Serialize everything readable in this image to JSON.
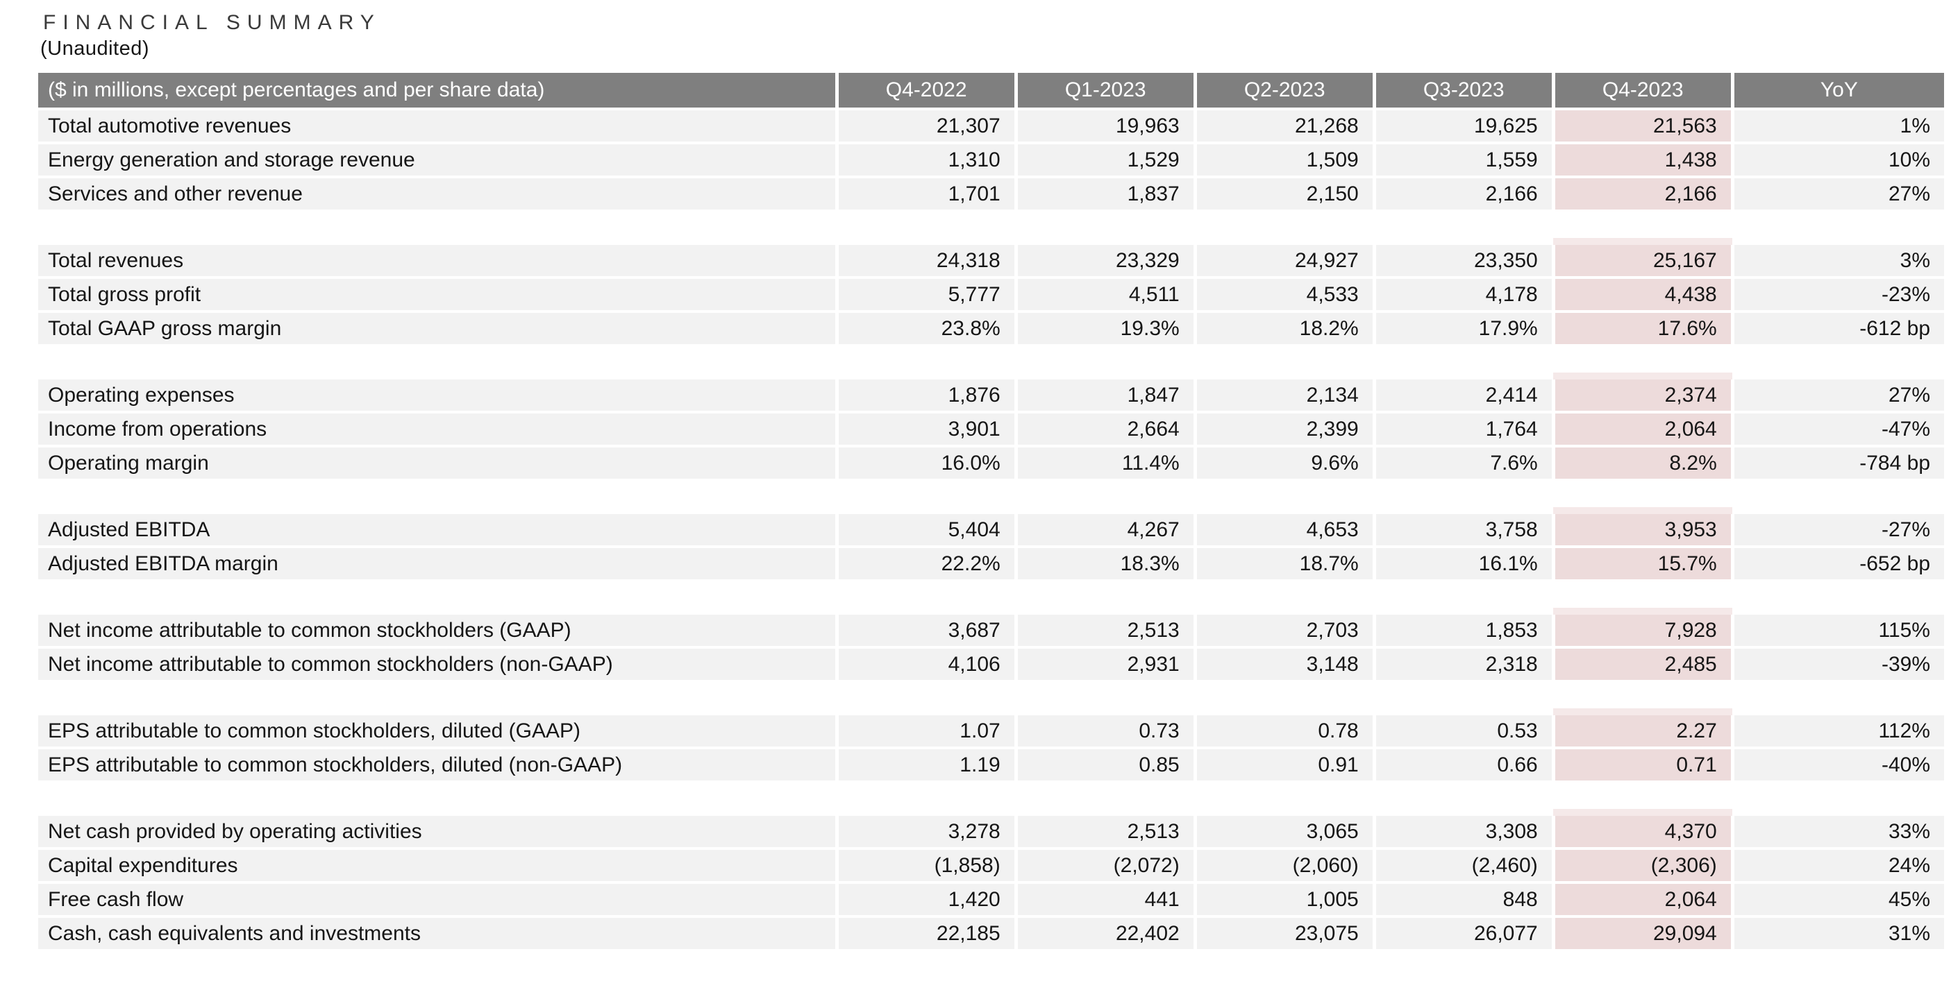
{
  "title": "FINANCIAL SUMMARY",
  "subtitle": "(Unaudited)",
  "colors": {
    "header_bg": "#7f7f7f",
    "header_text": "#ffffff",
    "row_bg": "#f2f2f2",
    "highlight_bg": "#eddbdb",
    "highlight_fade": "#f5e9e9",
    "text": "#161616",
    "title_text": "#3a3a3a"
  },
  "table": {
    "header": {
      "label": "($ in millions, except percentages and per share data)",
      "columns": [
        "Q4-2022",
        "Q1-2023",
        "Q2-2023",
        "Q3-2023",
        "Q4-2023",
        "YoY"
      ],
      "highlight_column": "Q4-2023"
    },
    "groups": [
      {
        "rows": [
          {
            "label": "Total automotive revenues",
            "values": [
              "21,307",
              "19,963",
              "21,268",
              "19,625",
              "21,563",
              "1%"
            ]
          },
          {
            "label": "Energy generation and storage revenue",
            "values": [
              "1,310",
              "1,529",
              "1,509",
              "1,559",
              "1,438",
              "10%"
            ]
          },
          {
            "label": "Services and other revenue",
            "values": [
              "1,701",
              "1,837",
              "2,150",
              "2,166",
              "2,166",
              "27%"
            ]
          }
        ]
      },
      {
        "rows": [
          {
            "label": "Total revenues",
            "values": [
              "24,318",
              "23,329",
              "24,927",
              "23,350",
              "25,167",
              "3%"
            ]
          },
          {
            "label": "Total gross profit",
            "values": [
              "5,777",
              "4,511",
              "4,533",
              "4,178",
              "4,438",
              "-23%"
            ]
          },
          {
            "label": "Total GAAP gross margin",
            "values": [
              "23.8%",
              "19.3%",
              "18.2%",
              "17.9%",
              "17.6%",
              "-612 bp"
            ]
          }
        ]
      },
      {
        "rows": [
          {
            "label": "Operating expenses",
            "values": [
              "1,876",
              "1,847",
              "2,134",
              "2,414",
              "2,374",
              "27%"
            ]
          },
          {
            "label": "Income from operations",
            "values": [
              "3,901",
              "2,664",
              "2,399",
              "1,764",
              "2,064",
              "-47%"
            ]
          },
          {
            "label": "Operating margin",
            "values": [
              "16.0%",
              "11.4%",
              "9.6%",
              "7.6%",
              "8.2%",
              "-784 bp"
            ]
          }
        ]
      },
      {
        "rows": [
          {
            "label": "Adjusted EBITDA",
            "values": [
              "5,404",
              "4,267",
              "4,653",
              "3,758",
              "3,953",
              "-27%"
            ]
          },
          {
            "label": "Adjusted EBITDA margin",
            "values": [
              "22.2%",
              "18.3%",
              "18.7%",
              "16.1%",
              "15.7%",
              "-652 bp"
            ]
          }
        ]
      },
      {
        "rows": [
          {
            "label": "Net income attributable to common stockholders (GAAP)",
            "values": [
              "3,687",
              "2,513",
              "2,703",
              "1,853",
              "7,928",
              "115%"
            ]
          },
          {
            "label": "Net income attributable to common stockholders (non-GAAP)",
            "values": [
              "4,106",
              "2,931",
              "3,148",
              "2,318",
              "2,485",
              "-39%"
            ]
          }
        ]
      },
      {
        "rows": [
          {
            "label": "EPS attributable to common stockholders, diluted (GAAP)",
            "values": [
              "1.07",
              "0.73",
              "0.78",
              "0.53",
              "2.27",
              "112%"
            ]
          },
          {
            "label": "EPS attributable to common stockholders, diluted (non-GAAP)",
            "values": [
              "1.19",
              "0.85",
              "0.91",
              "0.66",
              "0.71",
              "-40%"
            ]
          }
        ]
      },
      {
        "rows": [
          {
            "label": "Net cash provided by operating activities",
            "values": [
              "3,278",
              "2,513",
              "3,065",
              "3,308",
              "4,370",
              "33%"
            ]
          },
          {
            "label": "Capital expenditures",
            "values": [
              "(1,858)",
              "(2,072)",
              "(2,060)",
              "(2,460)",
              "(2,306)",
              "24%"
            ]
          },
          {
            "label": "Free cash flow",
            "values": [
              "1,420",
              "441",
              "1,005",
              "848",
              "2,064",
              "45%"
            ]
          },
          {
            "label": "Cash, cash equivalents and investments",
            "values": [
              "22,185",
              "22,402",
              "23,075",
              "26,077",
              "29,094",
              "31%"
            ]
          }
        ]
      }
    ]
  }
}
